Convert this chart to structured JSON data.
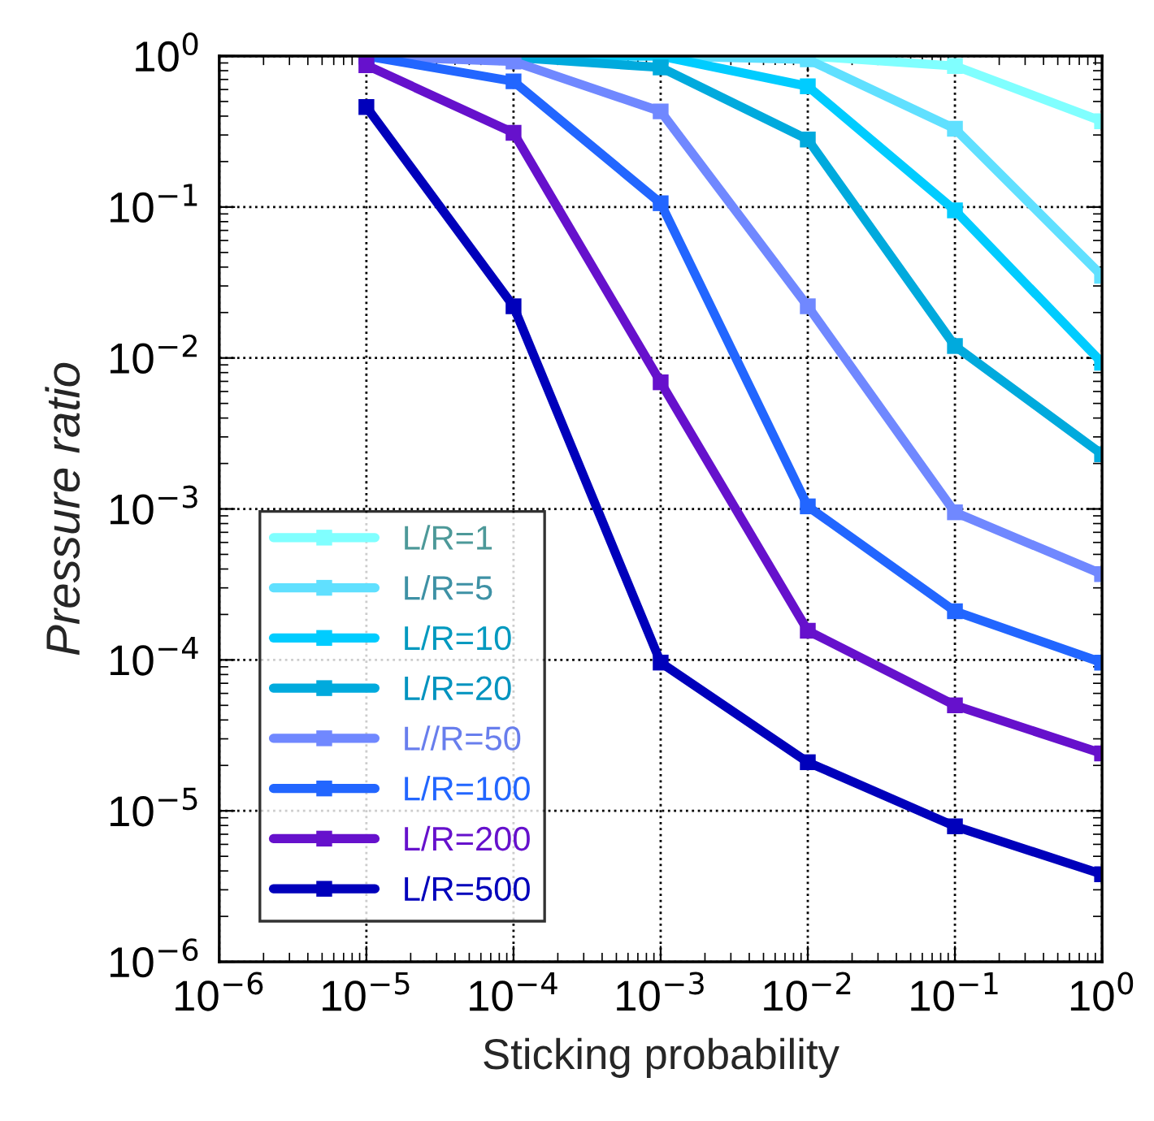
{
  "chart_data": {
    "type": "line",
    "xlabel": "Sticking probability",
    "ylabel": "Pressure ratio",
    "x": [
      1e-05,
      0.0001,
      0.001,
      0.01,
      0.1,
      1
    ],
    "series": [
      {
        "name": "L/R=1",
        "color": "#80ffff",
        "values": [
          null,
          null,
          1.0,
          1.0,
          0.86,
          0.37
        ]
      },
      {
        "name": "L/R=5",
        "color": "#60e0ff",
        "values": [
          1.0,
          1.0,
          1.0,
          0.95,
          0.33,
          0.035
        ]
      },
      {
        "name": "L/R=10",
        "color": "#00ccff",
        "values": [
          1.0,
          1.0,
          1.0,
          0.63,
          0.095,
          0.0093
        ]
      },
      {
        "name": "L/R=20",
        "color": "#00aadd",
        "values": [
          1.0,
          0.98,
          0.84,
          0.28,
          0.012,
          0.0023
        ]
      },
      {
        "name": "L//R=50",
        "color": "#7088ff",
        "values": [
          1.0,
          0.92,
          0.43,
          0.022,
          0.00095,
          0.00037
        ]
      },
      {
        "name": "L/R=100",
        "color": "#2266ff",
        "values": [
          1.0,
          0.68,
          0.106,
          0.00104,
          0.00021,
          9.6e-05
        ]
      },
      {
        "name": "L/R=200",
        "color": "#6611cc",
        "values": [
          0.87,
          0.31,
          0.0069,
          0.000156,
          5e-05,
          2.4e-05
        ]
      },
      {
        "name": "L/R=500",
        "color": "#0000bb",
        "values": [
          0.46,
          0.022,
          9.6e-05,
          2.1e-05,
          7.9e-06,
          3.8e-06
        ]
      }
    ],
    "log": "xy",
    "xlim": [
      1e-06,
      1
    ],
    "ylim": [
      1e-06,
      1
    ],
    "xticks": [
      {
        "value": 1e-06,
        "label": "10$^{−6}$"
      },
      {
        "value": 1e-05,
        "label": "10$^{−5}$"
      },
      {
        "value": 0.0001,
        "label": "10$^{−4}$"
      },
      {
        "value": 0.001,
        "label": "10$^{−3}$"
      },
      {
        "value": 0.01,
        "label": "10$^{−2}$"
      },
      {
        "value": 0.1,
        "label": "10$^{−1}$"
      },
      {
        "value": 1,
        "label": "10$^{0}$"
      }
    ],
    "yticks": [
      {
        "value": 1e-06,
        "label": "10$^{−6}$"
      },
      {
        "value": 1e-05,
        "label": "10$^{−5}$"
      },
      {
        "value": 0.0001,
        "label": "10$^{−4}$"
      },
      {
        "value": 0.001,
        "label": "10$^{−3}$"
      },
      {
        "value": 0.01,
        "label": "10$^{−2}$"
      },
      {
        "value": 0.1,
        "label": "10$^{−1}$"
      },
      {
        "value": 1,
        "label": "10$^{0}$"
      }
    ],
    "grid": true,
    "legend": "bottom left",
    "marker": "square",
    "line_style": "solid"
  }
}
